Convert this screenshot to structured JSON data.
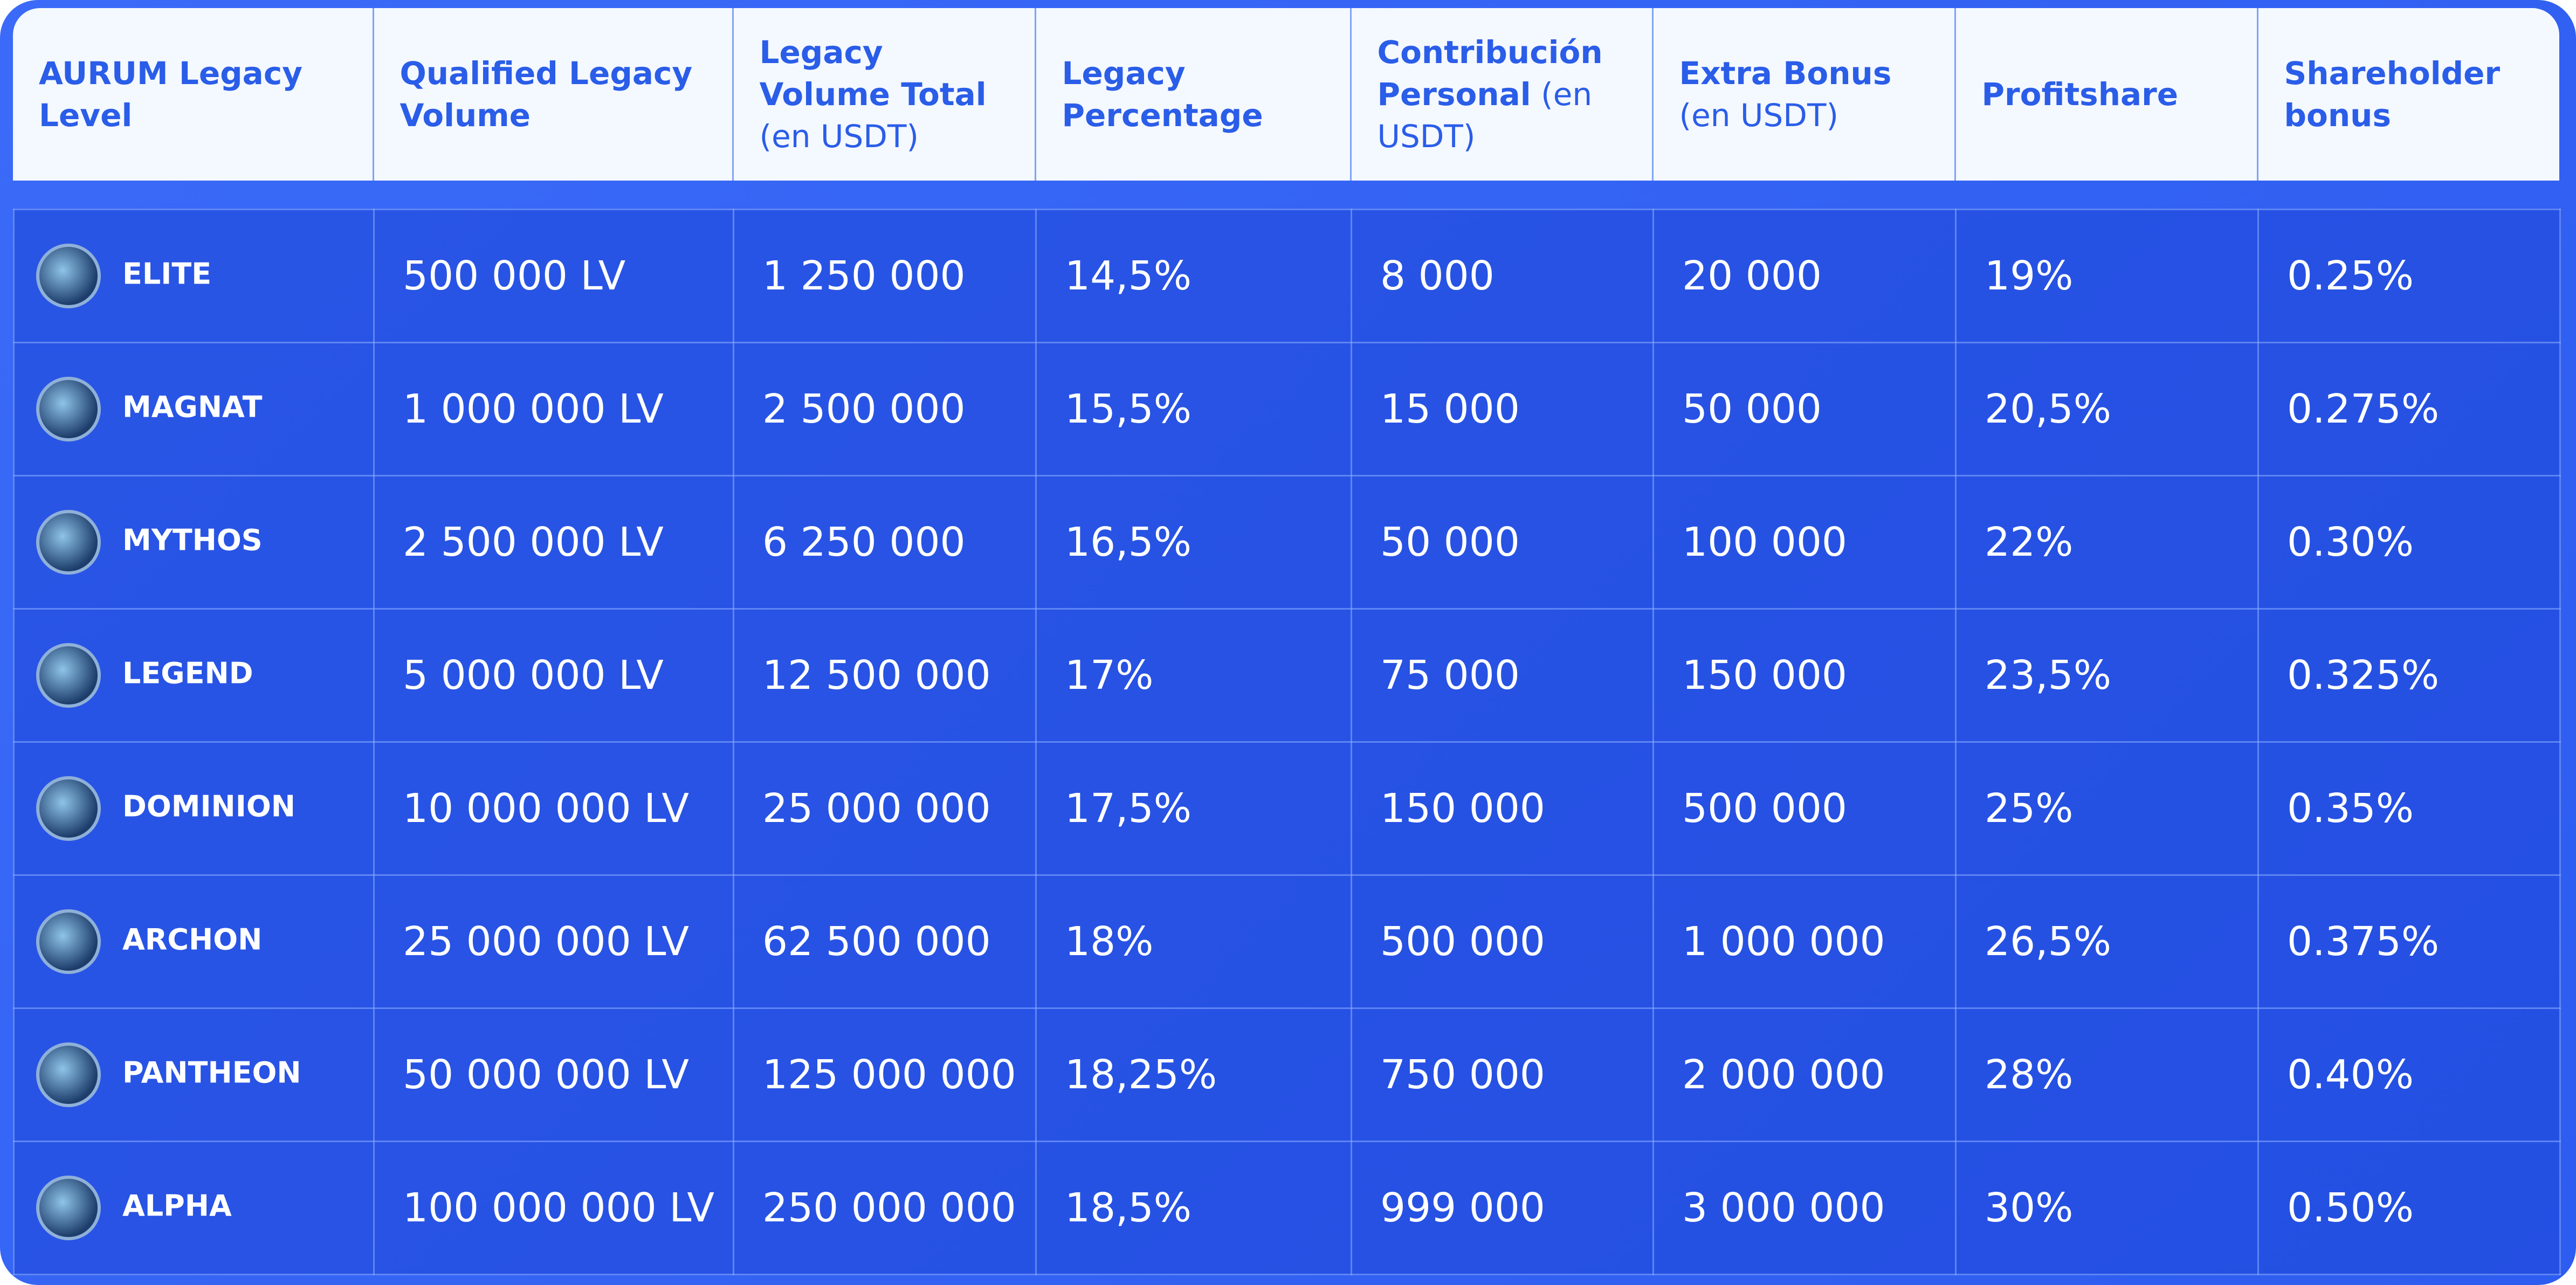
{
  "header": {
    "columns": [
      {
        "title": "AURUM Legacy Level"
      },
      {
        "title": "Qualified Legacy Volume"
      },
      {
        "title": "Legacy Volume Total",
        "note": "(en USDT)"
      },
      {
        "title": "Legacy Percentage"
      },
      {
        "title": "Contribución Personal",
        "note": "(en USDT)"
      },
      {
        "title": "Extra Bonus",
        "note": "(en USDT)"
      },
      {
        "title": "Profitshare"
      },
      {
        "title": "Shareholder bonus"
      }
    ]
  },
  "table": {
    "rows": [
      {
        "level": "ELITE",
        "values": [
          "500 000 LV",
          "1 250 000",
          "14,5%",
          "8 000",
          "20 000",
          "19%",
          "0.25%"
        ]
      },
      {
        "level": "MAGNAT",
        "values": [
          "1 000 000 LV",
          "2 500 000",
          "15,5%",
          "15 000",
          "50 000",
          "20,5%",
          "0.275%"
        ]
      },
      {
        "level": "MYTHOS",
        "values": [
          "2 500 000 LV",
          "6 250 000",
          "16,5%",
          "50 000",
          "100 000",
          "22%",
          "0.30%"
        ]
      },
      {
        "level": "LEGEND",
        "values": [
          "5 000 000 LV",
          "12 500 000",
          "17%",
          "75 000",
          "150 000",
          "23,5%",
          "0.325%"
        ]
      },
      {
        "level": "DOMINION",
        "values": [
          "10 000 000 LV",
          "25 000 000",
          "17,5%",
          "150 000",
          "500 000",
          "25%",
          "0.35%"
        ]
      },
      {
        "level": "ARCHON",
        "values": [
          "25 000 000 LV",
          "62 500 000",
          "18%",
          "500 000",
          "1 000 000",
          "26,5%",
          "0.375%"
        ]
      },
      {
        "level": "PANTHEON",
        "values": [
          "50 000 000 LV",
          "125 000 000",
          "18,25%",
          "750 000",
          "2 000 000",
          "28%",
          "0.40%"
        ]
      },
      {
        "level": "ALPHA",
        "values": [
          "100 000 000 LV",
          "250 000 000",
          "18,5%",
          "999 000",
          "3 000 000",
          "30%",
          "0.50%"
        ]
      }
    ]
  }
}
